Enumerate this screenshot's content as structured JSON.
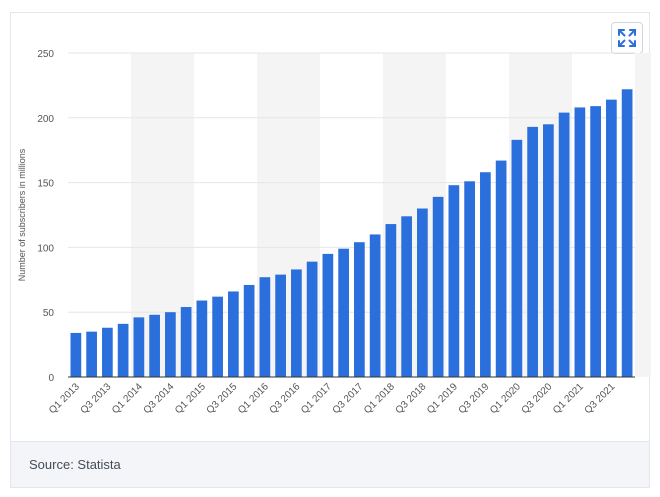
{
  "expand_icon": "expand-arrows-icon",
  "colors": {
    "bar": "#2a6fdb",
    "grid": "#e6e6e6",
    "band": "#f4f4f4",
    "axis": "#333333",
    "text": "#555555"
  },
  "footer": {
    "source": "Source: Statista"
  },
  "chart_data": {
    "type": "bar",
    "ylabel": "Number of subscribers in millions",
    "xlabel": "",
    "ylim": [
      0,
      250
    ],
    "yticks": [
      0,
      50,
      100,
      150,
      200,
      250
    ],
    "grid": true,
    "categories": [
      "Q1 2013",
      "Q2 2013",
      "Q3 2013",
      "Q4 2013",
      "Q1 2014",
      "Q2 2014",
      "Q3 2014",
      "Q4 2014",
      "Q1 2015",
      "Q2 2015",
      "Q3 2015",
      "Q4 2015",
      "Q1 2016",
      "Q2 2016",
      "Q3 2016",
      "Q4 2016",
      "Q1 2017",
      "Q2 2017",
      "Q3 2017",
      "Q4 2017",
      "Q1 2018",
      "Q2 2018",
      "Q3 2018",
      "Q4 2018",
      "Q1 2019",
      "Q2 2019",
      "Q3 2019",
      "Q4 2019",
      "Q1 2020",
      "Q2 2020",
      "Q3 2020",
      "Q4 2020",
      "Q1 2021",
      "Q2 2021",
      "Q3 2021",
      "Q4 2021"
    ],
    "xtick_labels": [
      "Q1 2013",
      "Q3 2013",
      "Q1 2014",
      "Q3 2014",
      "Q1 2015",
      "Q3 2015",
      "Q1 2016",
      "Q3 2016",
      "Q1 2017",
      "Q3 2017",
      "Q1 2018",
      "Q3 2018",
      "Q1 2019",
      "Q3 2019",
      "Q1 2020",
      "Q3 2020",
      "Q1 2021",
      "Q3 2021"
    ],
    "values": [
      34,
      35,
      38,
      41,
      46,
      48,
      50,
      54,
      59,
      62,
      66,
      71,
      77,
      79,
      83,
      89,
      95,
      99,
      104,
      110,
      118,
      124,
      130,
      139,
      148,
      151,
      158,
      167,
      183,
      193,
      195,
      204,
      208,
      209,
      214,
      222
    ]
  }
}
